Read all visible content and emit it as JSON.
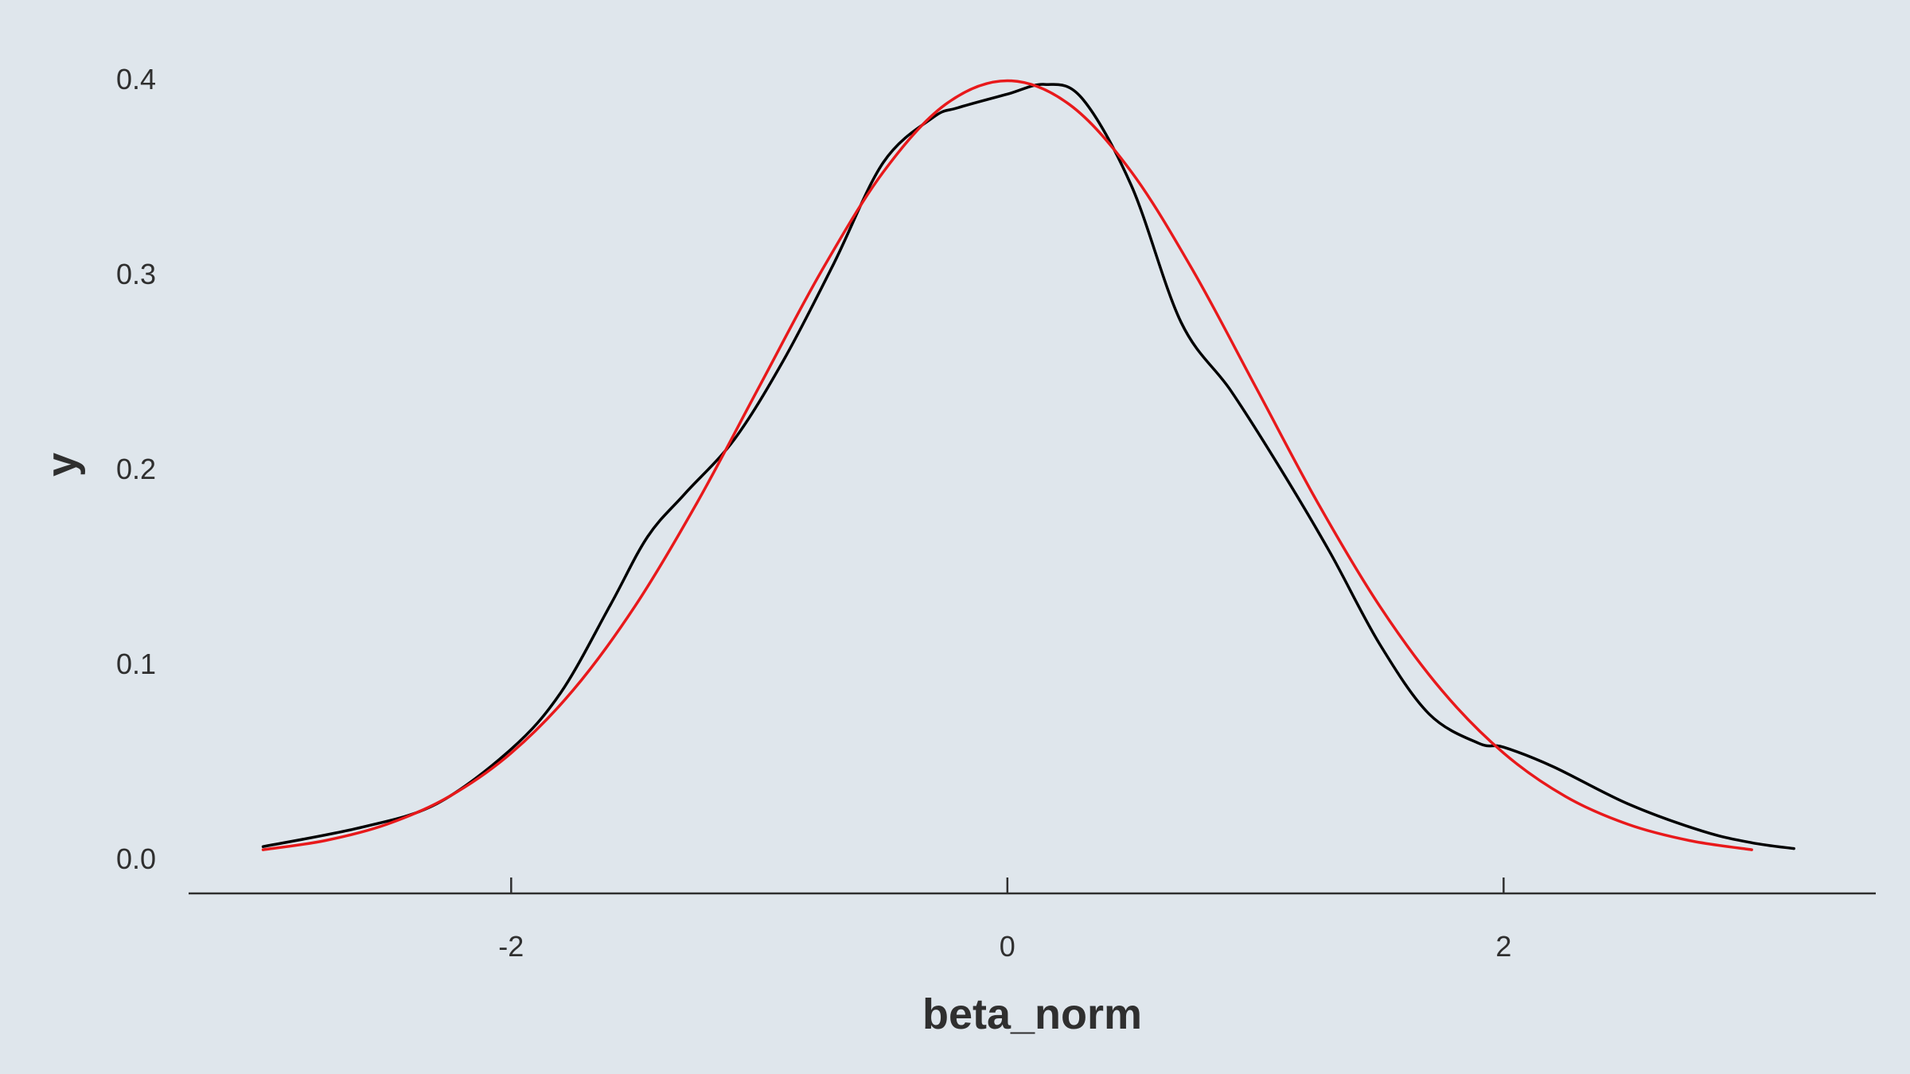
{
  "chart_data": {
    "type": "line",
    "title": "",
    "xlabel": "beta_norm",
    "ylabel": "y",
    "xlim": [
      -3.3,
      3.5
    ],
    "ylim": [
      -0.018,
      0.415
    ],
    "x_ticks": [
      {
        "value": -2,
        "label": "-2"
      },
      {
        "value": 0,
        "label": "0"
      },
      {
        "value": 2,
        "label": "2"
      }
    ],
    "y_ticks": [
      {
        "value": 0.0,
        "label": "0.0"
      },
      {
        "value": 0.1,
        "label": "0.1"
      },
      {
        "value": 0.2,
        "label": "0.2"
      },
      {
        "value": 0.3,
        "label": "0.3"
      },
      {
        "value": 0.4,
        "label": "0.4"
      }
    ],
    "grid": false,
    "legend": "none",
    "colors": {
      "background": "#dfe6ec",
      "axis": "#2f2f2f",
      "text": "#2f2f2f"
    },
    "series": [
      {
        "color": "#000000",
        "x": [
          -3.0,
          -2.6,
          -2.3,
          -2.0,
          -1.8,
          -1.6,
          -1.45,
          -1.3,
          -1.1,
          -0.9,
          -0.7,
          -0.5,
          -0.3,
          -0.2,
          0.0,
          0.15,
          0.3,
          0.5,
          0.7,
          0.9,
          1.1,
          1.3,
          1.5,
          1.7,
          1.9,
          2.0,
          2.2,
          2.5,
          2.8,
          3.0,
          3.17
        ],
        "y": [
          0.006,
          0.016,
          0.028,
          0.056,
          0.085,
          0.13,
          0.165,
          0.187,
          0.215,
          0.256,
          0.305,
          0.357,
          0.38,
          0.385,
          0.392,
          0.397,
          0.39,
          0.345,
          0.275,
          0.24,
          0.2,
          0.157,
          0.11,
          0.074,
          0.059,
          0.057,
          0.047,
          0.028,
          0.014,
          0.008,
          0.005
        ]
      },
      {
        "color": "#e8191b",
        "x": [
          -3.0,
          -2.75,
          -2.5,
          -2.25,
          -2.0,
          -1.75,
          -1.5,
          -1.25,
          -1.0,
          -0.75,
          -0.5,
          -0.25,
          0.0,
          0.25,
          0.5,
          0.75,
          1.0,
          1.25,
          1.5,
          1.75,
          2.0,
          2.25,
          2.5,
          2.75,
          3.0
        ],
        "y": [
          0.0044,
          0.0091,
          0.0175,
          0.0317,
          0.054,
          0.0863,
          0.1295,
          0.1826,
          0.242,
          0.3011,
          0.3521,
          0.3867,
          0.3989,
          0.3867,
          0.3521,
          0.3011,
          0.242,
          0.1826,
          0.1295,
          0.0863,
          0.054,
          0.0317,
          0.0175,
          0.0091,
          0.0044
        ]
      }
    ]
  }
}
